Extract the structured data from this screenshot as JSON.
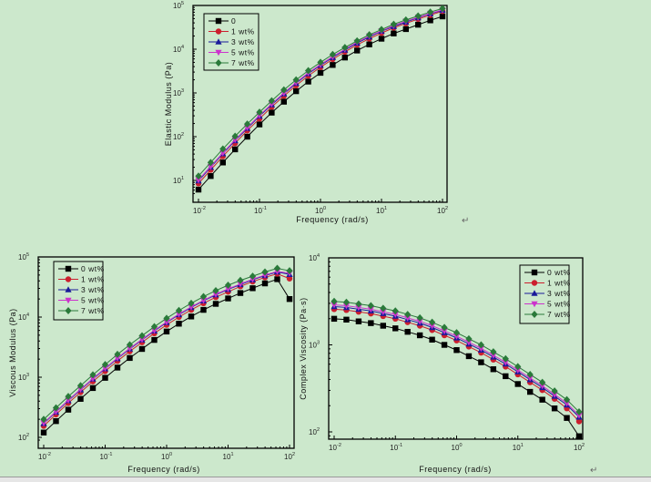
{
  "colors": {
    "0": "#000000",
    "1": "#cc1f2e",
    "3": "#1a1a9a",
    "5": "#cc33cc",
    "7": "#2a7a3a"
  },
  "return_mark": "↵",
  "chart_data": [
    {
      "id": "elastic",
      "type": "line",
      "xscale": "log",
      "yscale": "log",
      "xlabel": "Frequency (rad/s)",
      "ylabel": "Elastic Modulus (Pa)",
      "xlim": [
        0.01,
        100
      ],
      "ylim": [
        5,
        100000
      ],
      "xticks": [
        {
          "exp": "-2"
        },
        {
          "exp": "-1"
        },
        {
          "exp": "0"
        },
        {
          "exp": "1"
        },
        {
          "exp": "2"
        }
      ],
      "yticks": [
        {
          "exp": "1"
        },
        {
          "exp": "2"
        },
        {
          "exp": "3"
        },
        {
          "exp": "4"
        },
        {
          "exp": "5"
        }
      ],
      "legend": "top-left",
      "x_log10": [
        -2,
        -1.8,
        -1.6,
        -1.4,
        -1.2,
        -1,
        -0.8,
        -0.6,
        -0.4,
        -0.2,
        0,
        0.2,
        0.4,
        0.6,
        0.8,
        1,
        1.2,
        1.4,
        1.6,
        1.8,
        2
      ],
      "series": [
        {
          "name": "0",
          "key": "0",
          "marker": "square",
          "y_log10": [
            0.79,
            1.1,
            1.41,
            1.71,
            2.0,
            2.28,
            2.55,
            2.8,
            3.04,
            3.26,
            3.46,
            3.64,
            3.81,
            3.97,
            4.11,
            4.24,
            4.36,
            4.46,
            4.56,
            4.66,
            4.75
          ]
        },
        {
          "name": "1 wt%",
          "key": "1",
          "marker": "circle",
          "y_log10": [
            0.93,
            1.24,
            1.55,
            1.85,
            2.14,
            2.41,
            2.68,
            2.93,
            3.17,
            3.39,
            3.59,
            3.77,
            3.94,
            4.1,
            4.24,
            4.37,
            4.49,
            4.59,
            4.69,
            4.78,
            4.87
          ]
        },
        {
          "name": "3 wt%",
          "key": "3",
          "marker": "triangle-up",
          "y_log10": [
            0.99,
            1.3,
            1.61,
            1.91,
            2.19,
            2.47,
            2.73,
            2.98,
            3.22,
            3.44,
            3.63,
            3.81,
            3.98,
            4.14,
            4.28,
            4.41,
            4.52,
            4.62,
            4.72,
            4.81,
            4.89
          ]
        },
        {
          "name": "5 wt%",
          "key": "5",
          "marker": "triangle-down",
          "y_log10": [
            1.01,
            1.32,
            1.63,
            1.93,
            2.21,
            2.49,
            2.75,
            3.0,
            3.24,
            3.46,
            3.65,
            3.83,
            4.0,
            4.16,
            4.3,
            4.42,
            4.54,
            4.64,
            4.73,
            4.82,
            4.9
          ]
        },
        {
          "name": "7 wt%",
          "key": "7",
          "marker": "diamond",
          "y_log10": [
            1.1,
            1.41,
            1.72,
            2.01,
            2.29,
            2.56,
            2.82,
            3.07,
            3.3,
            3.51,
            3.7,
            3.88,
            4.04,
            4.19,
            4.33,
            4.45,
            4.57,
            4.67,
            4.76,
            4.85,
            4.93
          ]
        }
      ]
    },
    {
      "id": "viscous",
      "type": "line",
      "xscale": "log",
      "yscale": "log",
      "xlabel": "Frequency (rad/s)",
      "ylabel": "Viscous Modulus (Pa)",
      "xlim": [
        0.01,
        100
      ],
      "ylim": [
        83,
        100000
      ],
      "xticks": [
        {
          "exp": "-2"
        },
        {
          "exp": "-1"
        },
        {
          "exp": "0"
        },
        {
          "exp": "1"
        },
        {
          "exp": "2"
        }
      ],
      "yticks": [
        {
          "exp": "2"
        },
        {
          "exp": "3"
        },
        {
          "exp": "4"
        },
        {
          "exp": "5"
        }
      ],
      "legend": "top-left",
      "x_log10": [
        -2,
        -1.8,
        -1.6,
        -1.4,
        -1.2,
        -1,
        -0.8,
        -0.6,
        -0.4,
        -0.2,
        0,
        0.2,
        0.4,
        0.6,
        0.8,
        1,
        1.2,
        1.4,
        1.6,
        1.8,
        2
      ],
      "series": [
        {
          "name": "0 wt%",
          "key": "0",
          "marker": "square",
          "y_log10": [
            2.08,
            2.27,
            2.46,
            2.64,
            2.82,
            2.99,
            3.16,
            3.32,
            3.47,
            3.62,
            3.76,
            3.89,
            4.01,
            4.12,
            4.22,
            4.31,
            4.4,
            4.48,
            4.56,
            4.63,
            4.3
          ]
        },
        {
          "name": "1 wt%",
          "key": "1",
          "marker": "circle",
          "y_log10": [
            2.19,
            2.38,
            2.57,
            2.75,
            2.93,
            3.1,
            3.27,
            3.43,
            3.58,
            3.73,
            3.87,
            4.0,
            4.12,
            4.23,
            4.33,
            4.42,
            4.51,
            4.59,
            4.66,
            4.72,
            4.64
          ]
        },
        {
          "name": "3 wt%",
          "key": "3",
          "marker": "triangle-up",
          "y_log10": [
            2.23,
            2.42,
            2.61,
            2.79,
            2.97,
            3.14,
            3.31,
            3.47,
            3.62,
            3.77,
            3.91,
            4.04,
            4.16,
            4.27,
            4.37,
            4.46,
            4.54,
            4.62,
            4.69,
            4.75,
            4.71
          ]
        },
        {
          "name": "5 wt%",
          "key": "5",
          "marker": "triangle-down",
          "y_log10": [
            2.24,
            2.43,
            2.62,
            2.8,
            2.98,
            3.15,
            3.32,
            3.48,
            3.63,
            3.78,
            3.92,
            4.05,
            4.17,
            4.28,
            4.38,
            4.47,
            4.55,
            4.63,
            4.7,
            4.76,
            4.73
          ]
        },
        {
          "name": "7 wt%",
          "key": "7",
          "marker": "diamond",
          "y_log10": [
            2.3,
            2.49,
            2.68,
            2.86,
            3.04,
            3.21,
            3.38,
            3.54,
            3.69,
            3.84,
            3.98,
            4.11,
            4.23,
            4.34,
            4.44,
            4.53,
            4.61,
            4.68,
            4.75,
            4.81,
            4.77
          ]
        }
      ]
    },
    {
      "id": "viscosity",
      "type": "line",
      "xscale": "log",
      "yscale": "log",
      "xlabel": "Frequency (rad/s)",
      "ylabel": "Complex Viscosity (Pa·s)",
      "xlim": [
        0.01,
        100
      ],
      "ylim": [
        83,
        10000
      ],
      "xticks": [
        {
          "exp": "-2"
        },
        {
          "exp": "-1"
        },
        {
          "exp": "0"
        },
        {
          "exp": "1"
        },
        {
          "exp": "2"
        }
      ],
      "yticks": [
        {
          "exp": "2"
        },
        {
          "exp": "3"
        },
        {
          "exp": "4"
        }
      ],
      "legend": "top-right",
      "x_log10": [
        -2,
        -1.8,
        -1.6,
        -1.4,
        -1.2,
        -1,
        -0.8,
        -0.6,
        -0.4,
        -0.2,
        0,
        0.2,
        0.4,
        0.6,
        0.8,
        1,
        1.2,
        1.4,
        1.6,
        1.8,
        2
      ],
      "series": [
        {
          "name": "0 wt%",
          "key": "0",
          "marker": "square",
          "y_log10": [
            3.3,
            3.29,
            3.27,
            3.25,
            3.22,
            3.19,
            3.15,
            3.11,
            3.06,
            3.0,
            2.94,
            2.87,
            2.8,
            2.72,
            2.64,
            2.55,
            2.46,
            2.37,
            2.27,
            2.16,
            1.95
          ]
        },
        {
          "name": "1 wt%",
          "key": "1",
          "marker": "circle",
          "y_log10": [
            3.41,
            3.4,
            3.38,
            3.36,
            3.33,
            3.3,
            3.26,
            3.22,
            3.17,
            3.11,
            3.05,
            2.98,
            2.91,
            2.83,
            2.75,
            2.66,
            2.57,
            2.48,
            2.38,
            2.27,
            2.12
          ]
        },
        {
          "name": "3 wt%",
          "key": "3",
          "marker": "triangle-up",
          "y_log10": [
            3.44,
            3.43,
            3.41,
            3.39,
            3.36,
            3.33,
            3.29,
            3.25,
            3.2,
            3.14,
            3.08,
            3.01,
            2.94,
            2.86,
            2.78,
            2.69,
            2.6,
            2.51,
            2.41,
            2.31,
            2.17
          ]
        },
        {
          "name": "5 wt%",
          "key": "5",
          "marker": "triangle-down",
          "y_log10": [
            3.46,
            3.45,
            3.43,
            3.41,
            3.38,
            3.35,
            3.31,
            3.27,
            3.22,
            3.16,
            3.1,
            3.03,
            2.96,
            2.88,
            2.8,
            2.71,
            2.62,
            2.53,
            2.43,
            2.33,
            2.19
          ]
        },
        {
          "name": "7 wt%",
          "key": "7",
          "marker": "diamond",
          "y_log10": [
            3.5,
            3.49,
            3.47,
            3.45,
            3.42,
            3.39,
            3.35,
            3.31,
            3.26,
            3.2,
            3.14,
            3.07,
            3.0,
            2.92,
            2.84,
            2.75,
            2.66,
            2.57,
            2.47,
            2.37,
            2.23
          ]
        }
      ]
    }
  ]
}
